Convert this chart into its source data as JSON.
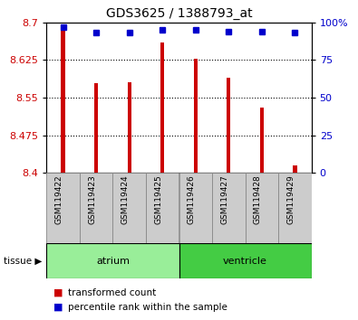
{
  "title": "GDS3625 / 1388793_at",
  "samples": [
    "GSM119422",
    "GSM119423",
    "GSM119424",
    "GSM119425",
    "GSM119426",
    "GSM119427",
    "GSM119428",
    "GSM119429"
  ],
  "transformed_counts": [
    8.695,
    8.578,
    8.58,
    8.66,
    8.627,
    8.59,
    8.53,
    8.415
  ],
  "percentile_ranks": [
    97,
    93,
    93,
    95,
    95,
    94,
    94,
    93
  ],
  "ymin": 8.4,
  "ymax": 8.7,
  "yticks": [
    8.4,
    8.475,
    8.55,
    8.625,
    8.7
  ],
  "ytick_labels": [
    "8.4",
    "8.475",
    "8.55",
    "8.625",
    "8.7"
  ],
  "right_yticks": [
    0,
    25,
    50,
    75,
    100
  ],
  "right_ytick_labels": [
    "0",
    "25",
    "50",
    "75",
    "100%"
  ],
  "bar_color": "#CC0000",
  "dot_color": "#0000CC",
  "base_value": 8.4,
  "groups": [
    {
      "label": "atrium",
      "start": 0,
      "end": 4,
      "color": "#99EE99"
    },
    {
      "label": "ventricle",
      "start": 4,
      "end": 8,
      "color": "#44CC44"
    }
  ],
  "legend_bar_label": "transformed count",
  "legend_dot_label": "percentile rank within the sample",
  "tissue_label": "tissue",
  "background_color": "#FFFFFF",
  "plot_bg_color": "#FFFFFF",
  "tick_label_color_left": "#CC0000",
  "tick_label_color_right": "#0000CC",
  "grid_color": "#000000",
  "bar_width": 0.12,
  "sample_box_color": "#CCCCCC",
  "sample_box_edge": "#888888"
}
